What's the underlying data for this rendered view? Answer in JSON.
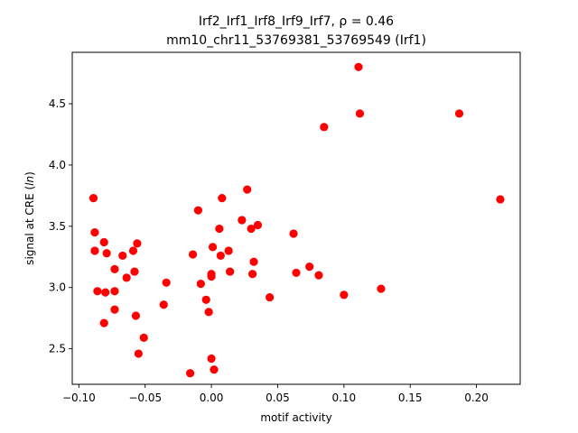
{
  "chart_data": {
    "type": "scatter",
    "title_line1": "Irf2_Irf1_Irf8_Irf9_Irf7, ρ = 0.46",
    "title_line2": "mm10_chr11_53769381_53769549 (Irf1)",
    "xlabel": "motif activity",
    "ylabel": "signal at CRE (ln)",
    "xlim": [
      -0.105,
      0.233
    ],
    "ylim": [
      2.21,
      4.92
    ],
    "xticks": [
      -0.1,
      -0.05,
      0.0,
      0.05,
      0.1,
      0.15,
      0.2
    ],
    "xtick_labels": [
      "−0.10",
      "−0.05",
      "0.00",
      "0.05",
      "0.10",
      "0.15",
      "0.20"
    ],
    "yticks": [
      2.5,
      3.0,
      3.5,
      4.0,
      4.5
    ],
    "ytick_labels": [
      "2.5",
      "3.0",
      "3.5",
      "4.0",
      "4.5"
    ],
    "grid": false,
    "marker_color": "#ff0000",
    "points": [
      {
        "x": -0.089,
        "y": 3.73
      },
      {
        "x": -0.088,
        "y": 3.45
      },
      {
        "x": -0.088,
        "y": 3.3
      },
      {
        "x": -0.086,
        "y": 2.97
      },
      {
        "x": -0.081,
        "y": 3.37
      },
      {
        "x": -0.08,
        "y": 2.96
      },
      {
        "x": -0.081,
        "y": 2.71
      },
      {
        "x": -0.079,
        "y": 3.28
      },
      {
        "x": -0.073,
        "y": 3.15
      },
      {
        "x": -0.073,
        "y": 2.97
      },
      {
        "x": -0.073,
        "y": 2.82
      },
      {
        "x": -0.067,
        "y": 3.26
      },
      {
        "x": -0.064,
        "y": 3.08
      },
      {
        "x": -0.059,
        "y": 3.3
      },
      {
        "x": -0.058,
        "y": 3.13
      },
      {
        "x": -0.056,
        "y": 3.36
      },
      {
        "x": -0.057,
        "y": 2.77
      },
      {
        "x": -0.055,
        "y": 2.46
      },
      {
        "x": -0.051,
        "y": 2.59
      },
      {
        "x": -0.036,
        "y": 2.86
      },
      {
        "x": -0.034,
        "y": 3.04
      },
      {
        "x": -0.016,
        "y": 2.3
      },
      {
        "x": -0.014,
        "y": 3.27
      },
      {
        "x": -0.01,
        "y": 3.63
      },
      {
        "x": -0.008,
        "y": 3.03
      },
      {
        "x": -0.004,
        "y": 2.9
      },
      {
        "x": -0.002,
        "y": 2.8
      },
      {
        "x": 0.0,
        "y": 3.11
      },
      {
        "x": 0.0,
        "y": 3.09
      },
      {
        "x": 0.0,
        "y": 2.42
      },
      {
        "x": 0.001,
        "y": 3.33
      },
      {
        "x": 0.002,
        "y": 2.33
      },
      {
        "x": 0.006,
        "y": 3.48
      },
      {
        "x": 0.007,
        "y": 3.26
      },
      {
        "x": 0.008,
        "y": 3.73
      },
      {
        "x": 0.013,
        "y": 3.3
      },
      {
        "x": 0.014,
        "y": 3.13
      },
      {
        "x": 0.023,
        "y": 3.55
      },
      {
        "x": 0.027,
        "y": 3.8
      },
      {
        "x": 0.03,
        "y": 3.48
      },
      {
        "x": 0.031,
        "y": 3.11
      },
      {
        "x": 0.032,
        "y": 3.21
      },
      {
        "x": 0.035,
        "y": 3.51
      },
      {
        "x": 0.044,
        "y": 2.92
      },
      {
        "x": 0.062,
        "y": 3.44
      },
      {
        "x": 0.064,
        "y": 3.12
      },
      {
        "x": 0.074,
        "y": 3.17
      },
      {
        "x": 0.081,
        "y": 3.1
      },
      {
        "x": 0.085,
        "y": 4.31
      },
      {
        "x": 0.1,
        "y": 2.94
      },
      {
        "x": 0.111,
        "y": 4.8
      },
      {
        "x": 0.112,
        "y": 4.42
      },
      {
        "x": 0.128,
        "y": 2.99
      },
      {
        "x": 0.187,
        "y": 4.42
      },
      {
        "x": 0.218,
        "y": 3.72
      }
    ]
  }
}
